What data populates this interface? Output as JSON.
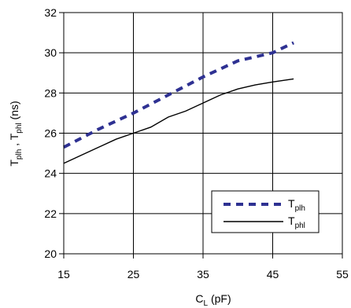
{
  "chart_data": {
    "type": "line",
    "title": "",
    "xlabel_main": "C",
    "xlabel_sub": "L",
    "xlabel_unit": " (pF)",
    "ylabel_a_main": "T",
    "ylabel_a_sub": "plh",
    "ylabel_sep": " , ",
    "ylabel_b_main": "T",
    "ylabel_b_sub": "phl",
    "ylabel_unit": " (ns)",
    "xlim": [
      15,
      55
    ],
    "ylim": [
      20,
      32
    ],
    "xticks": [
      15,
      25,
      35,
      45,
      55
    ],
    "yticks": [
      20,
      22,
      24,
      26,
      28,
      30,
      32
    ],
    "grid": true,
    "legend_position": "bottom-right",
    "series": [
      {
        "name_main": "T",
        "name_sub": "plh",
        "style": "dashed",
        "color": "#2e3192",
        "x": [
          15,
          20,
          25,
          30,
          35,
          40,
          45,
          48
        ],
        "y": [
          25.3,
          26.2,
          27.0,
          27.9,
          28.8,
          29.6,
          30.0,
          30.5
        ]
      },
      {
        "name_main": "T",
        "name_sub": "phl",
        "style": "solid",
        "color": "#000000",
        "x": [
          15,
          17.5,
          20,
          22.5,
          25,
          27.5,
          30,
          32.5,
          35,
          37.5,
          40,
          42.5,
          45,
          48
        ],
        "y": [
          24.5,
          24.9,
          25.3,
          25.7,
          26.0,
          26.3,
          26.8,
          27.1,
          27.5,
          27.9,
          28.2,
          28.4,
          28.55,
          28.7
        ]
      }
    ]
  }
}
